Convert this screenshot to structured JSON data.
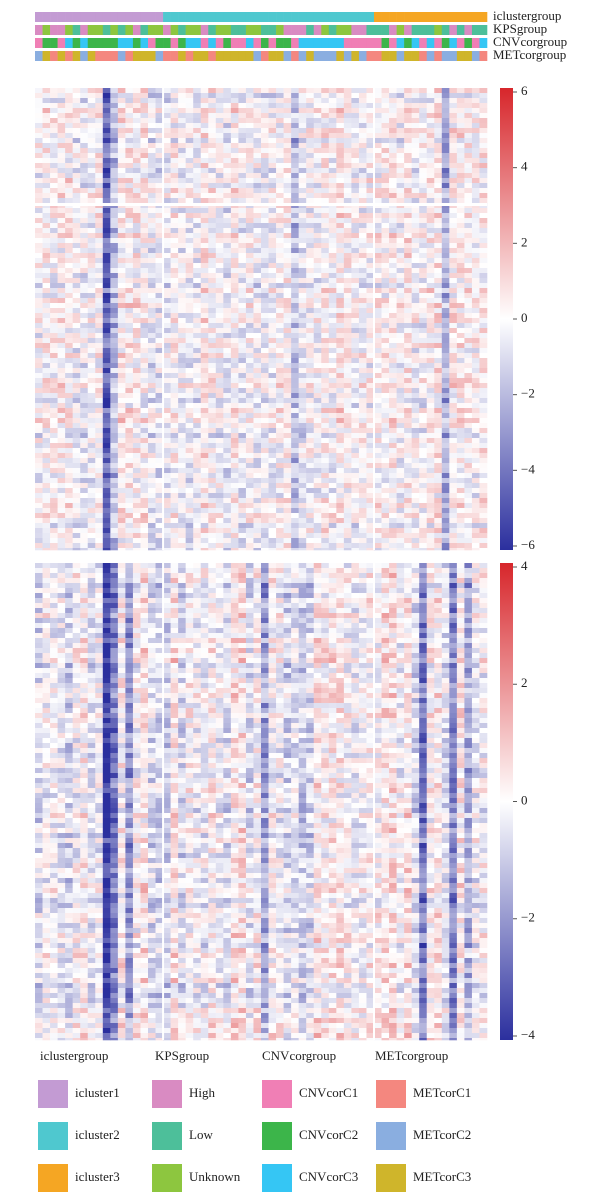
{
  "annotation_tracks": [
    "iclustergroup",
    "KPSgroup",
    "CNVcorgroup",
    "METcorgroup"
  ],
  "colorbars": [
    {
      "lim": [
        -6,
        6
      ],
      "ticks": [
        {
          "value": -6,
          "label": "−6"
        },
        {
          "value": -4,
          "label": "−4"
        },
        {
          "value": -2,
          "label": "−2"
        },
        0,
        2,
        4,
        6
      ]
    },
    {
      "lim": [
        -4,
        4
      ],
      "ticks": [
        {
          "value": -4,
          "label": "−4"
        },
        {
          "value": -2,
          "label": "−2"
        },
        0,
        2,
        4
      ]
    }
  ],
  "legend": [
    {
      "title": "iclustergroup",
      "items": [
        {
          "label": "icluster1",
          "color": "#c39bd3"
        },
        {
          "label": "icluster2",
          "color": "#4fc8cf"
        },
        {
          "label": "icluster3",
          "color": "#f5a623"
        }
      ]
    },
    {
      "title": "KPSgroup",
      "items": [
        {
          "label": "High",
          "color": "#d98bc2"
        },
        {
          "label": "Low",
          "color": "#4dbf9a"
        },
        {
          "label": "Unknown",
          "color": "#8dc63f"
        }
      ]
    },
    {
      "title": "CNVcorgroup",
      "items": [
        {
          "label": "CNVcorC1",
          "color": "#f07fb5"
        },
        {
          "label": "CNVcorC2",
          "color": "#3cb54a"
        },
        {
          "label": "CNVcorC3",
          "color": "#35c6f4"
        }
      ]
    },
    {
      "title": "METcorgroup",
      "items": [
        {
          "label": "METcorC1",
          "color": "#f4877f"
        },
        {
          "label": "METcorC2",
          "color": "#8aaee0"
        },
        {
          "label": "METcorC3",
          "color": "#cfb52b"
        }
      ]
    }
  ]
}
